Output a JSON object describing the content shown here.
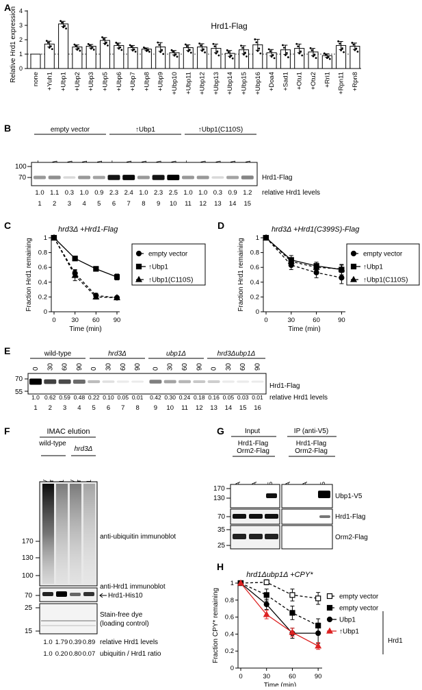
{
  "panel_letters": [
    "A",
    "B",
    "C",
    "D",
    "E",
    "F",
    "G",
    "H"
  ],
  "panelA": {
    "title": "Hrd1-Flag",
    "ylabel": "Relative Hrd1 expression",
    "yticks": [
      "0",
      "1",
      "2",
      "3",
      "4"
    ],
    "categories": [
      "none",
      "+Yuh1",
      "+Ubp1",
      "+Ubp2",
      "+Ubp3",
      "+Ubp5",
      "+Ubp6",
      "+Ubp7",
      "+Ubp8",
      "+Ubp9",
      "+Ubp10",
      "+Ubp11",
      "+Ubp12",
      "+Ubp13",
      "+Ubp14",
      "+Ubp15",
      "+Ubp16",
      "+Doa4",
      "+Sad1",
      "+Otu1",
      "+Otu2",
      "+Rri1",
      "+Rpn11",
      "+Rpn8"
    ]
  },
  "chart_data": [
    {
      "type": "bar",
      "title": "Hrd1-Flag",
      "ylabel": "Relative Hrd1 expression",
      "ylim": [
        0,
        4
      ],
      "categories": [
        "none",
        "+Yuh1",
        "+Ubp1",
        "+Ubp2",
        "+Ubp3",
        "+Ubp5",
        "+Ubp6",
        "+Ubp7",
        "+Ubp8",
        "+Ubp9",
        "+Ubp10",
        "+Ubp11",
        "+Ubp12",
        "+Ubp13",
        "+Ubp14",
        "+Ubp15",
        "+Ubp16",
        "+Doa4",
        "+Sad1",
        "+Otu1",
        "+Otu2",
        "+Rri1",
        "+Rpn11",
        "+Rpn8"
      ],
      "values": [
        1.0,
        1.7,
        3.1,
        1.5,
        1.55,
        1.95,
        1.6,
        1.45,
        1.35,
        1.5,
        1.1,
        1.45,
        1.5,
        1.4,
        1.05,
        1.3,
        1.65,
        1.1,
        1.3,
        1.4,
        1.15,
        0.9,
        1.6,
        1.55
      ],
      "errors": [
        0,
        0.2,
        0.18,
        0.14,
        0.12,
        0.2,
        0.17,
        0.15,
        0.08,
        0.3,
        0.15,
        0.2,
        0.22,
        0.3,
        0.2,
        0.28,
        0.38,
        0.22,
        0.32,
        0.3,
        0.25,
        0.12,
        0.28,
        0.22
      ]
    },
    {
      "type": "line",
      "title": "hrd3Δ +Hrd1-Flag",
      "xlabel": "Time (min)",
      "ylabel": "Fraction Hrd1 remaining",
      "x": [
        0,
        30,
        60,
        90
      ],
      "ylim": [
        0,
        1
      ],
      "series": [
        {
          "name": "empty vector",
          "values": [
            1.0,
            0.52,
            0.22,
            0.19
          ],
          "err": [
            0,
            0.05,
            0.03,
            0.02
          ]
        },
        {
          "name": "Ubp1",
          "values": [
            1.0,
            0.72,
            0.58,
            0.47
          ],
          "err": [
            0,
            0.03,
            0.02,
            0.04
          ]
        },
        {
          "name": "Ubp1(C110S)",
          "values": [
            1.0,
            0.49,
            0.2,
            0.19
          ],
          "err": [
            0,
            0.07,
            0.03,
            0.02
          ]
        }
      ]
    },
    {
      "type": "line",
      "title": "hrd3Δ +Hrd1(C399S)-Flag",
      "xlabel": "Time (min)",
      "ylabel": "Fraction Hrd1 remaining",
      "x": [
        0,
        30,
        60,
        90
      ],
      "ylim": [
        0,
        1
      ],
      "series": [
        {
          "name": "empty vector",
          "values": [
            1.0,
            0.63,
            0.53,
            0.46
          ],
          "err": [
            0,
            0.06,
            0.07,
            0.08
          ]
        },
        {
          "name": "Ubp1",
          "values": [
            1.0,
            0.7,
            0.62,
            0.57
          ],
          "err": [
            0,
            0.06,
            0.05,
            0.07
          ]
        },
        {
          "name": "Ubp1(C110S)",
          "values": [
            1.0,
            0.68,
            0.6,
            0.58
          ],
          "err": [
            0,
            0.05,
            0.04,
            0.05
          ]
        }
      ]
    },
    {
      "type": "line",
      "title": "hrd1Δubp1Δ +CPY*",
      "xlabel": "Time (min)",
      "ylabel": "Fraction CPY* remaining",
      "x": [
        0,
        30,
        60,
        90
      ],
      "ylim": [
        0,
        1
      ],
      "series": [
        {
          "name": "empty vector",
          "values": [
            1.0,
            1.01,
            0.86,
            0.82
          ],
          "err": [
            0,
            0.03,
            0.07,
            0.07
          ]
        },
        {
          "name": "empty vector",
          "values": [
            1.0,
            0.86,
            0.65,
            0.5
          ],
          "err": [
            0,
            0.07,
            0.08,
            0.08
          ]
        },
        {
          "name": "Ubp1",
          "values": [
            1.0,
            0.75,
            0.41,
            0.41
          ],
          "err": [
            0,
            0.06,
            0.06,
            0.12
          ]
        },
        {
          "name": "Ubp1",
          "values": [
            1.0,
            0.63,
            0.42,
            0.26
          ],
          "err": [
            0,
            0.05,
            0.05,
            0.04
          ]
        }
      ]
    }
  ],
  "panelB": {
    "groups": [
      "empty vector",
      "Ubp1",
      "Ubp1(C110S)"
    ],
    "lanes": [
      "WT",
      "hrd1Δ",
      "hrd3Δ",
      "usa1Δ",
      "der1Δ",
      "WT",
      "hrd1Δ",
      "hrd3Δ",
      "usa1Δ",
      "der1Δ",
      "WT",
      "hrd1Δ",
      "hrd3Δ",
      "usa1Δ",
      "der1Δ"
    ],
    "mw": [
      "100",
      "70"
    ],
    "band": "Hrd1-Flag",
    "levels": [
      "1.0",
      "1.1",
      "0.3",
      "1.0",
      "0.9",
      "2.3",
      "2.4",
      "1.0",
      "2.3",
      "2.5",
      "1.0",
      "1.0",
      "0.3",
      "0.9",
      "1.2"
    ],
    "levels_label": "relative Hrd1 levels",
    "numbers": [
      "1",
      "2",
      "3",
      "4",
      "5",
      "6",
      "7",
      "8",
      "9",
      "10",
      "11",
      "12",
      "13",
      "14",
      "15"
    ]
  },
  "panelC": {
    "title": "hrd3Δ +Hrd1-Flag",
    "ylabel": "Fraction Hrd1 remaining",
    "xlabel": "Time (min)",
    "legend": [
      "empty vector",
      "Ubp1",
      "Ubp1(C110S)"
    ],
    "xticks": [
      "0",
      "30",
      "60",
      "90"
    ],
    "yticks": [
      "0",
      "0.2",
      "0.4",
      "0.6",
      "0.8",
      "1"
    ]
  },
  "panelD": {
    "title": "hrd3Δ +Hrd1(C399S)-Flag",
    "ylabel": "Fraction Hrd1 remaining",
    "xlabel": "Time (min)",
    "legend": [
      "empty vector",
      "Ubp1",
      "Ubp1(C110S)"
    ],
    "xticks": [
      "0",
      "30",
      "60",
      "90"
    ],
    "yticks": [
      "0",
      "0.2",
      "0.4",
      "0.6",
      "0.8",
      "1"
    ]
  },
  "panelE": {
    "groups": [
      "wild-type",
      "hrd3Δ",
      "ubp1Δ",
      "hrd3Δubp1Δ"
    ],
    "times": [
      "0",
      "30",
      "60",
      "90",
      "0",
      "30",
      "60",
      "90",
      "0",
      "30",
      "60",
      "90",
      "0",
      "30",
      "60",
      "90"
    ],
    "mw": [
      "70",
      "55"
    ],
    "band": "Hrd1-Flag",
    "levels": [
      "1.0",
      "0.62",
      "0.59",
      "0.48",
      "0.22",
      "0.10",
      "0.05",
      "0.01",
      "0.42",
      "0.30",
      "0.24",
      "0.18",
      "0.16",
      "0.05",
      "0.03",
      "0.01"
    ],
    "levels_label": "relative Hrd1 levels",
    "numbers": [
      "1",
      "2",
      "3",
      "4",
      "5",
      "6",
      "7",
      "8",
      "9",
      "10",
      "11",
      "12",
      "13",
      "14",
      "15",
      "16"
    ]
  },
  "panelF": {
    "header": "IMAC elution",
    "groups": [
      "wild-type",
      "hrd3Δ"
    ],
    "lanes": [
      "empty vector",
      "Ubp1",
      "empty vector",
      "Ubp1"
    ],
    "mw_top": [
      "170",
      "130",
      "100"
    ],
    "mw_mid": [
      "70"
    ],
    "mw_bot": [
      "25",
      "15"
    ],
    "blot1": "anti-ubiquitin immunoblot",
    "blot2": "anti-Hrd1 immunoblot",
    "blot2_band": "Hrd1-His10",
    "blot3": "Stain-free dye",
    "blot3_sub": "(loading control)",
    "levels": [
      "1.0",
      "1.79",
      "0.39",
      "0.89"
    ],
    "levels_label": "relative Hrd1 levels",
    "ratio": [
      "1.0",
      "0.20",
      "0.80",
      "0.07"
    ],
    "ratio_label": "ubiquitin / Hrd1 ratio"
  },
  "panelG": {
    "input": "Input",
    "ip": "IP (anti-V5)",
    "strain_line1": "Hrd1-Flag",
    "strain_line2": "Orm2-Flag",
    "lanes": [
      "Ubp1-HA",
      "Ubp1-HA",
      "Ubp1-V5"
    ],
    "mw1": [
      "170",
      "130"
    ],
    "mw2": [
      "70"
    ],
    "mw3": [
      "35",
      "25"
    ],
    "bands": [
      "Ubp1-V5",
      "Hrd1-Flag",
      "Orm2-Flag"
    ]
  },
  "panelH": {
    "title": "hrd1Δubp1Δ +CPY*",
    "ylabel": "Fraction CPY* remaining",
    "xlabel": "Time (min)",
    "legend": [
      "empty vector",
      "empty vector",
      "Ubp1",
      "Ubp1"
    ],
    "bracket": "Hrd1",
    "xticks": [
      "0",
      "30",
      "60",
      "90"
    ],
    "yticks": [
      "0",
      "0.2",
      "0.4",
      "0.6",
      "0.8",
      "1"
    ]
  }
}
